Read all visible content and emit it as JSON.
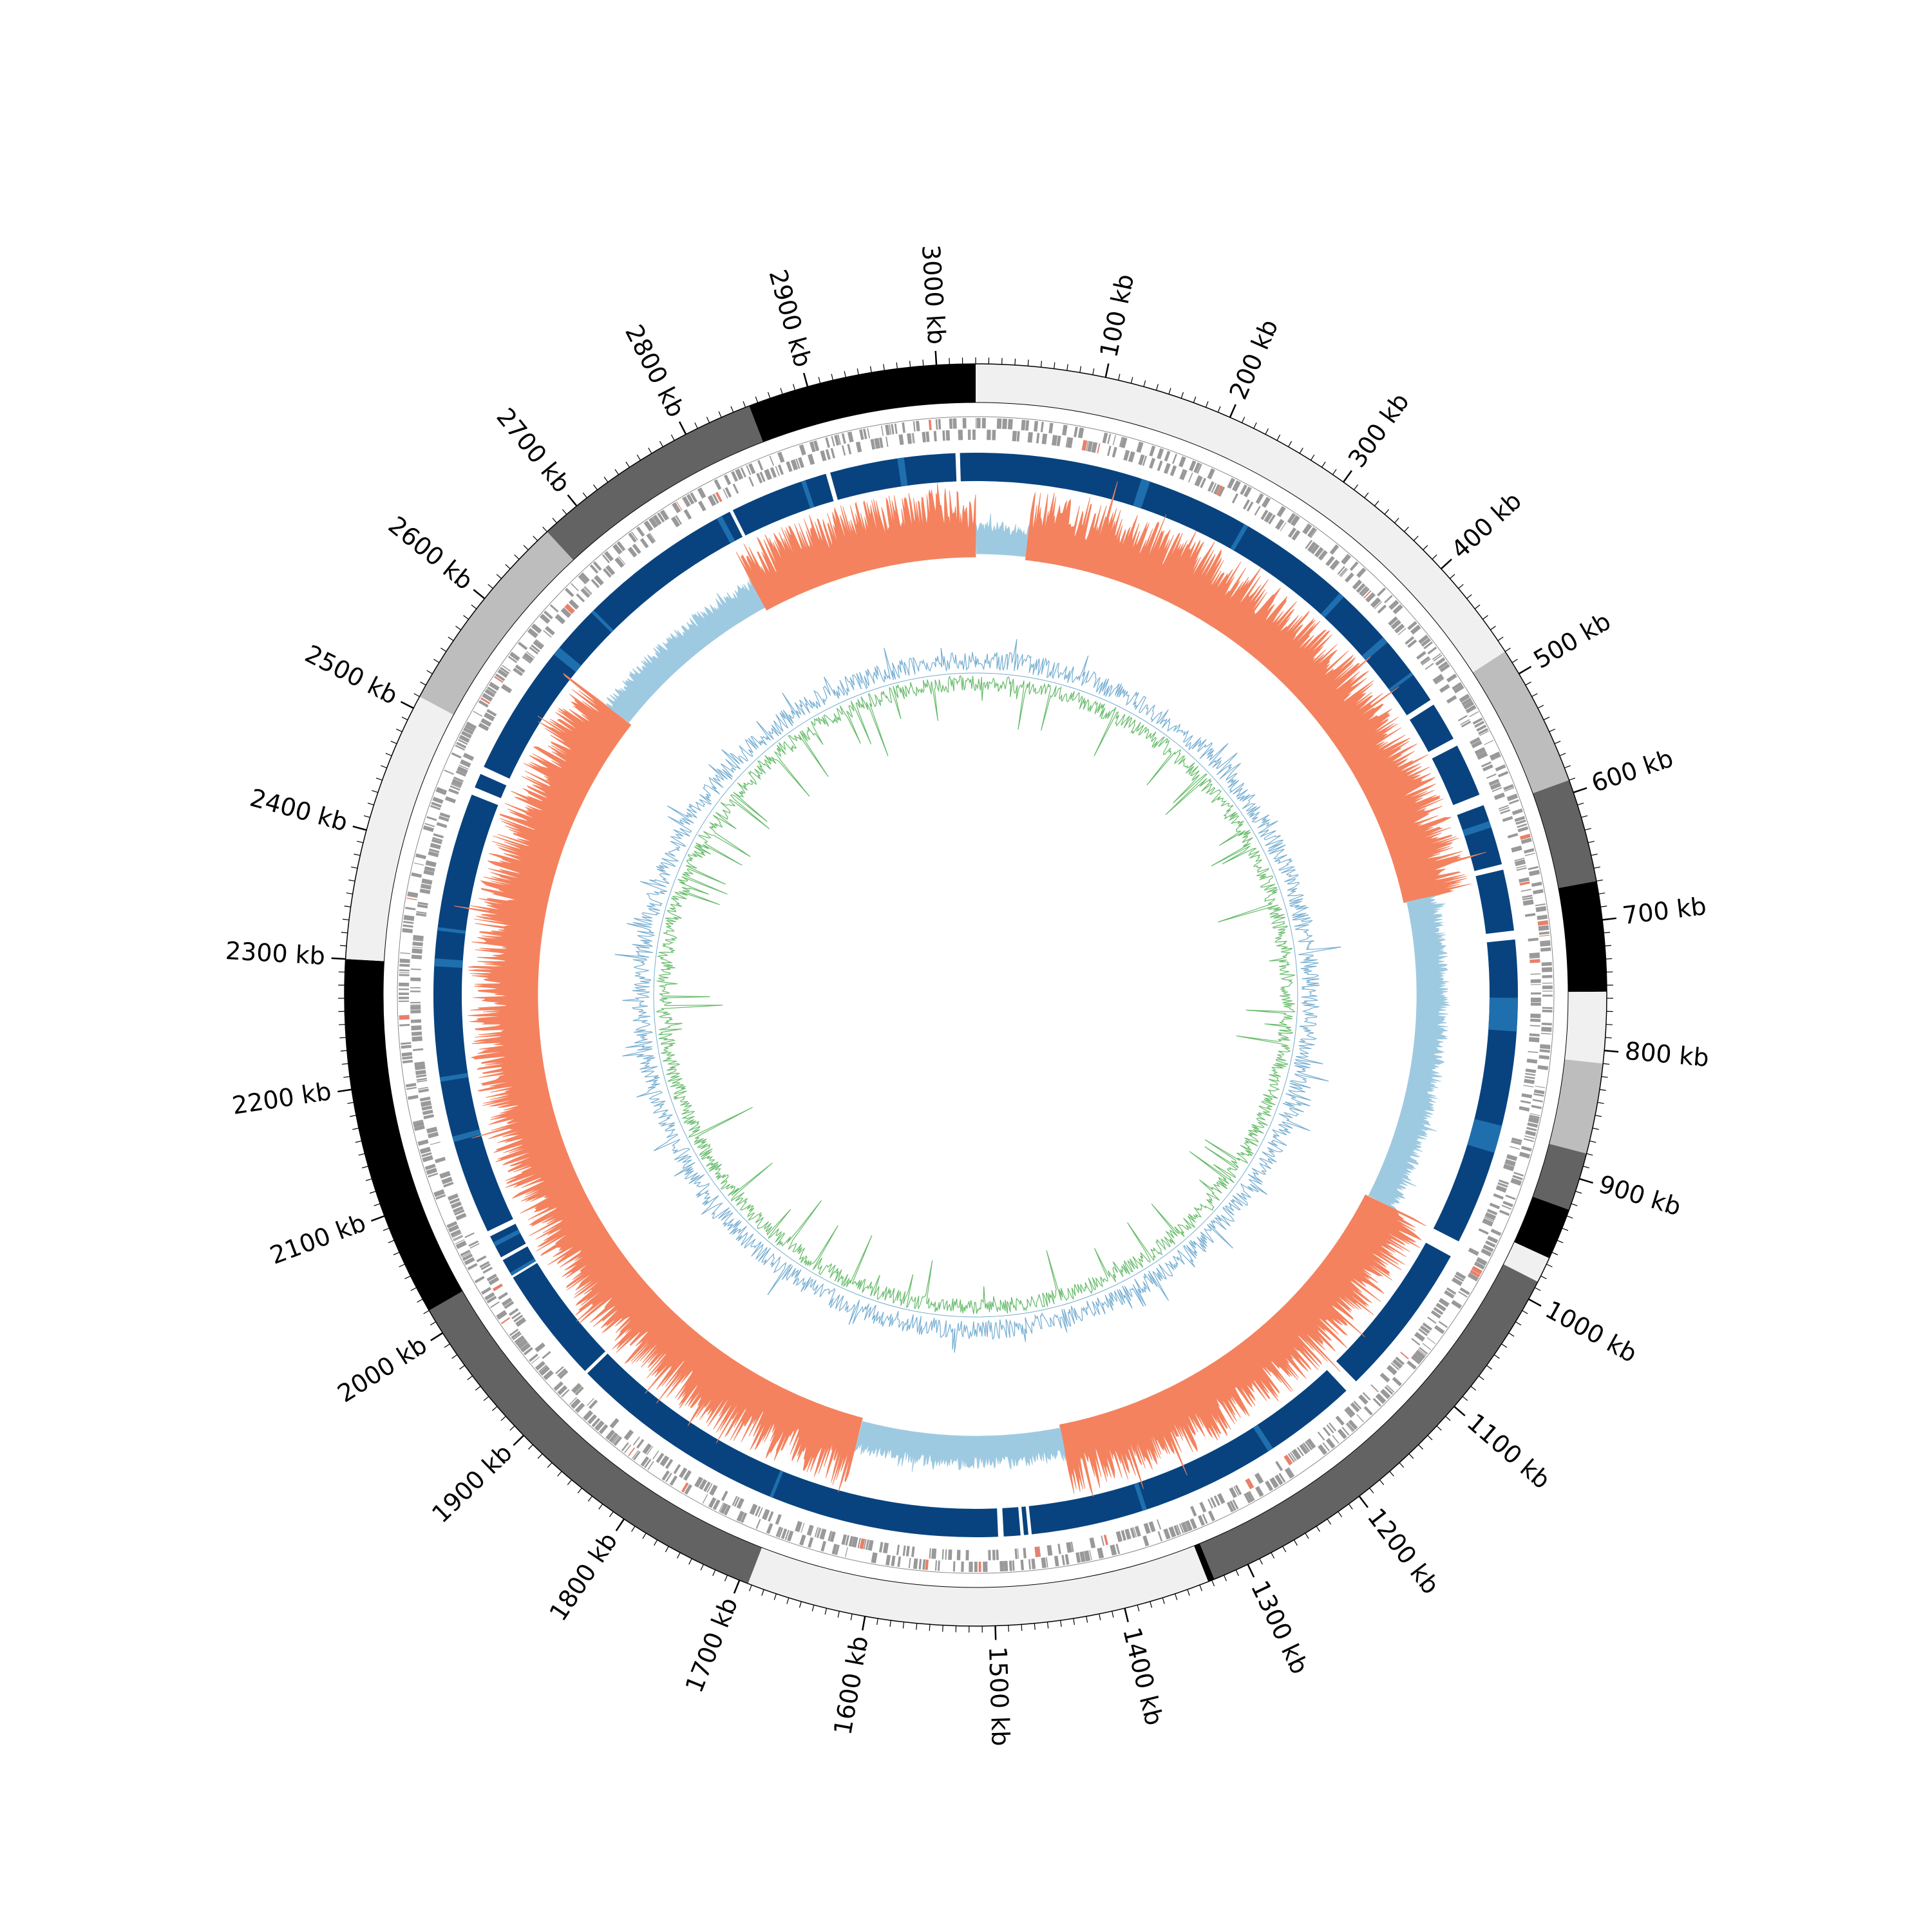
{
  "chart_data": {
    "type": "circular-genome",
    "genome_length_kb": 3030,
    "axis": {
      "unit": "kb",
      "major_ticks_kb": [
        100,
        200,
        300,
        400,
        500,
        600,
        700,
        800,
        900,
        1000,
        1100,
        1200,
        1300,
        1400,
        1500,
        1600,
        1700,
        1800,
        1900,
        2000,
        2100,
        2200,
        2300,
        2400,
        2500,
        2600,
        2700,
        2800,
        2900,
        3000
      ],
      "tick_labels": [
        "100 kb",
        "200 kb",
        "300 kb",
        "400 kb",
        "500 kb",
        "600 kb",
        "700 kb",
        "800 kb",
        "900 kb",
        "1000 kb",
        "1100 kb",
        "1200 kb",
        "1300 kb",
        "1400 kb",
        "1500 kb",
        "1600 kb",
        "1700 kb",
        "1800 kb",
        "1900 kb",
        "2000 kb",
        "2100 kb",
        "2200 kb",
        "2300 kb",
        "2400 kb",
        "2500 kb",
        "2600 kb",
        "2700 kb",
        "2800 kb",
        "2900 kb",
        "3000 kb"
      ],
      "minor_tick_step_kb": 10
    },
    "contigs": [
      {
        "start": 0,
        "end": 480,
        "color": "#f0f0f0"
      },
      {
        "start": 480,
        "end": 590,
        "color": "#bdbdbd"
      },
      {
        "start": 590,
        "end": 670,
        "color": "#636363"
      },
      {
        "start": 670,
        "end": 755,
        "color": "#000000"
      },
      {
        "start": 755,
        "end": 810,
        "color": "#f0f0f0"
      },
      {
        "start": 810,
        "end": 880,
        "color": "#bdbdbd"
      },
      {
        "start": 880,
        "end": 925,
        "color": "#636363"
      },
      {
        "start": 925,
        "end": 965,
        "color": "#000000"
      },
      {
        "start": 965,
        "end": 985,
        "color": "#f0f0f0"
      },
      {
        "start": 985,
        "end": 1328,
        "color": "#636363"
      },
      {
        "start": 1328,
        "end": 1333,
        "color": "#000000"
      },
      {
        "start": 1333,
        "end": 1693,
        "color": "#f0f0f0"
      },
      {
        "start": 1693,
        "end": 2020,
        "color": "#636363"
      },
      {
        "start": 2020,
        "end": 2300,
        "color": "#000000"
      },
      {
        "start": 2300,
        "end": 2510,
        "color": "#f0f0f0"
      },
      {
        "start": 2510,
        "end": 2670,
        "color": "#bdbdbd"
      },
      {
        "start": 2670,
        "end": 2853,
        "color": "#636363"
      },
      {
        "start": 2853,
        "end": 3030,
        "color": "#000000"
      }
    ],
    "tracks": {
      "genes": {
        "color": "#999999",
        "highlight_color": "#e8806a"
      },
      "blast_blocks": {
        "main_color": "#08437f",
        "alt_color": "#1f6fae",
        "gaps_kb": [
          [
            480,
            485
          ],
          [
            520,
            527
          ],
          [
            575,
            585
          ],
          [
            640,
            645
          ],
          [
            700,
            708
          ],
          [
            985,
            1000
          ],
          [
            1140,
            1152
          ],
          [
            1465,
            1468
          ],
          [
            1472,
            1475
          ],
          [
            1490,
            1495
          ],
          [
            1900,
            1903
          ],
          [
            2008,
            2011
          ],
          [
            2026,
            2029
          ],
          [
            2050,
            2055
          ],
          [
            2455,
            2462
          ],
          [
            2475,
            2482
          ],
          [
            2803,
            2806
          ],
          [
            2895,
            2899
          ],
          [
            3012,
            3016
          ]
        ]
      },
      "gc_skew": {
        "positive_color": "#f4825e",
        "negative_color": "#9ecae1",
        "segments_kb": [
          [
            0,
            55,
            "neg"
          ],
          [
            55,
            655,
            "pos"
          ],
          [
            655,
            985,
            "neg"
          ],
          [
            985,
            1422,
            "pos"
          ],
          [
            1422,
            1640,
            "neg"
          ],
          [
            1640,
            2593,
            "pos"
          ],
          [
            2593,
            2790,
            "neg"
          ],
          [
            2790,
            3030,
            "pos"
          ]
        ]
      },
      "gc_content": {
        "up_color": "#74add1",
        "down_color": "#66bb6a"
      }
    }
  }
}
